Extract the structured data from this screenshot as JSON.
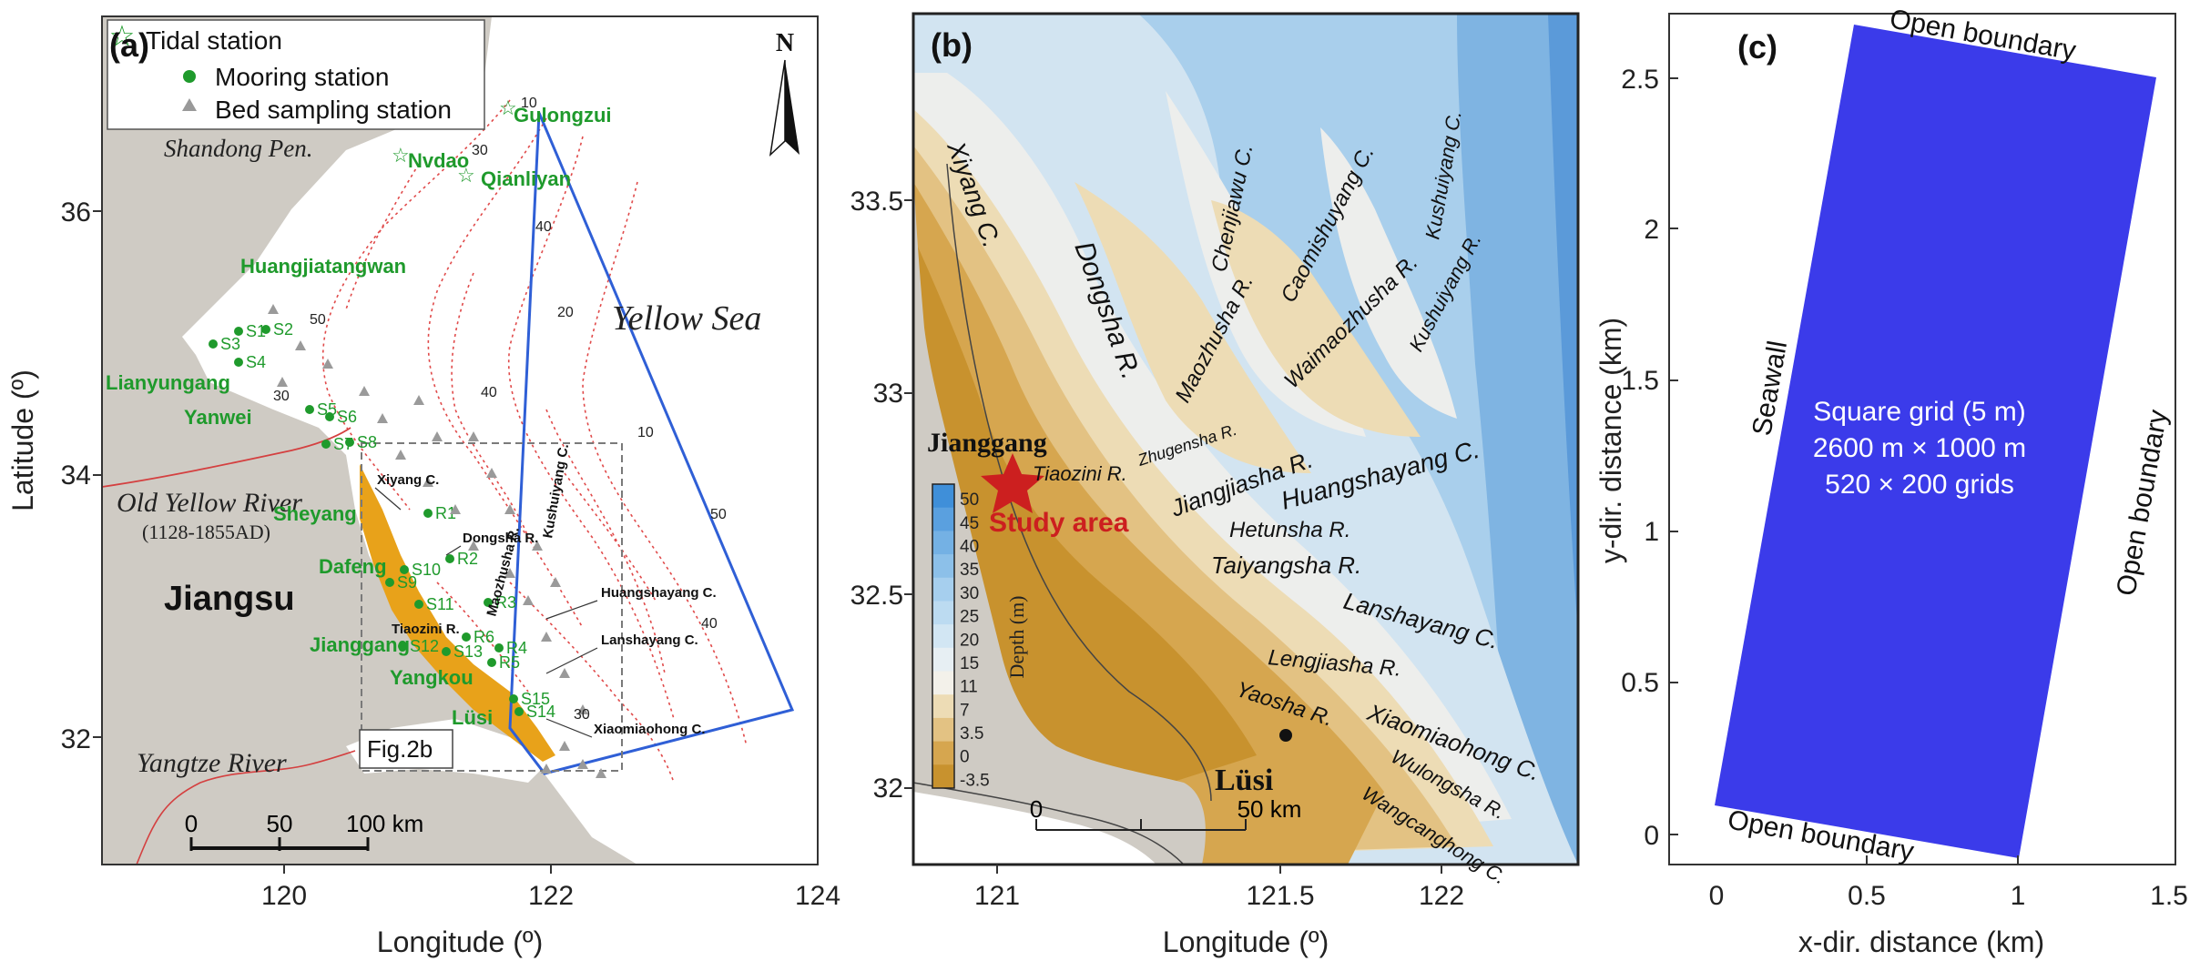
{
  "panel_a": {
    "label": "(a)",
    "legend": {
      "tidal": "Tidal station",
      "mooring": "Mooring station",
      "bed": "Bed sampling station"
    },
    "xlabel": "Longitude (º)",
    "ylabel": "Latitude (º)",
    "xticks": [
      "120",
      "122",
      "124"
    ],
    "yticks": [
      "36",
      "34",
      "32"
    ],
    "places": {
      "shandong": "Shandong Pen.",
      "yellow_sea": "Yellow Sea",
      "old_yellow_river": "Old Yellow River",
      "old_yellow_years": "(1128-1855AD)",
      "jiangsu": "Jiangsu",
      "yangtze": "Yangtze River",
      "fig2b": "Fig.2b"
    },
    "stations": {
      "gulongzui": "Gulongzui",
      "nvdao": "Nvdao",
      "qianliyan": "Qianliyan",
      "huangjiatangwan": "Huangjiatangwan",
      "lianyungang": "Lianyungang",
      "yanwei": "Yanwei",
      "sheyang": "Sheyang",
      "dafeng": "Dafeng",
      "jianggang": "Jianggang",
      "yangkou": "Yangkou",
      "lusi": "Lüsi"
    },
    "moorings": [
      "S1",
      "S2",
      "S3",
      "S4",
      "S5",
      "S6",
      "S7",
      "S8",
      "S9",
      "S10",
      "S11",
      "S12",
      "S13",
      "S14",
      "S15",
      "R1",
      "R2",
      "R3",
      "R4",
      "R5",
      "R6"
    ],
    "channels": {
      "xiyang": "Xiyang C.",
      "dongsha": "Dongsha R.",
      "maozhusha": "Maozhusha R.",
      "kushuiyang": "Kushuiyang C.",
      "huangshayang": "Huangshayang C.",
      "lanshayang": "Lanshayang C.",
      "tiaozini": "Tiaozini R.",
      "xiaomiaohong": "Xiaomiaohong C."
    },
    "contours": [
      "10",
      "30",
      "40",
      "50",
      "20",
      "10",
      "30",
      "40",
      "50",
      "30",
      "40"
    ],
    "scalebar": {
      "ticks": [
        "0",
        "50",
        "100 km"
      ]
    }
  },
  "panel_b": {
    "label": "(b)",
    "xlabel": "Longitude (º)",
    "xticks": [
      "121",
      "121.5",
      "122"
    ],
    "yticks": [
      "33.5",
      "33",
      "32.5",
      "32"
    ],
    "colorbar": {
      "title": "Depth (m)",
      "levels": [
        "50",
        "45",
        "40",
        "35",
        "30",
        "25",
        "20",
        "15",
        "11",
        "7",
        "3.5",
        "0",
        "-3.5"
      ],
      "colors": [
        "#3f8fd9",
        "#5aa0df",
        "#74b1e4",
        "#8cc0e9",
        "#a6cfee",
        "#bcdbf1",
        "#d2e6f3",
        "#e7eff3",
        "#f3f1ea",
        "#eddcb5",
        "#e3c283",
        "#d6a64f",
        "#c8922e"
      ]
    },
    "jianggang": "Jianggang",
    "study_area": "Study area",
    "lusi": "Lüsi",
    "channels": {
      "xiyang": "Xiyang C.",
      "dongsha": "Dongsha R.",
      "chenjiawu": "Chenjiawu C.",
      "caomishuyang": "Caomishuyang C.",
      "kushuiyang_c": "Kushuiyang C.",
      "kushuiyang_r": "Kushuiyang R.",
      "maozhusha": "Maozhusha R.",
      "waimaozhusha": "Waimaozhusha R.",
      "tiaozini": "Tiaozini R.",
      "zhugensha": "Zhugensha R.",
      "jiangjiasha": "Jiangjiasha R.",
      "huangshayang": "Huangshayang C.",
      "hetunsha": "Hetunsha R.",
      "taiyangsha": "Taiyangsha R.",
      "lanshayang": "Lanshayang C.",
      "lengjiasha": "Lengjiasha R.",
      "yaosha": "Yaosha R.",
      "xiaomiaohong": "Xiaomiaohong C.",
      "wulongsha": "Wulongsha R.",
      "wangcanghong": "Wangcanghong C."
    },
    "scalebar": {
      "ticks": [
        "0",
        "50 km"
      ]
    }
  },
  "panel_c": {
    "label": "(c)",
    "xlabel": "x-dir. distance (km)",
    "ylabel": "y-dir. distance (km)",
    "xticks": [
      "0",
      "0.5",
      "1",
      "1.5"
    ],
    "yticks": [
      "2.5",
      "2",
      "1.5",
      "1",
      "0.5",
      "0"
    ],
    "grid_color": "#3b3bea",
    "open_top": "Open boundary",
    "open_right": "Open boundary",
    "open_bottom": "Open boundary",
    "seawall": "Seawall",
    "grid_lines": [
      "Square grid (5 m)",
      "2600 m × 1000 m",
      "520 × 200 grids"
    ]
  }
}
